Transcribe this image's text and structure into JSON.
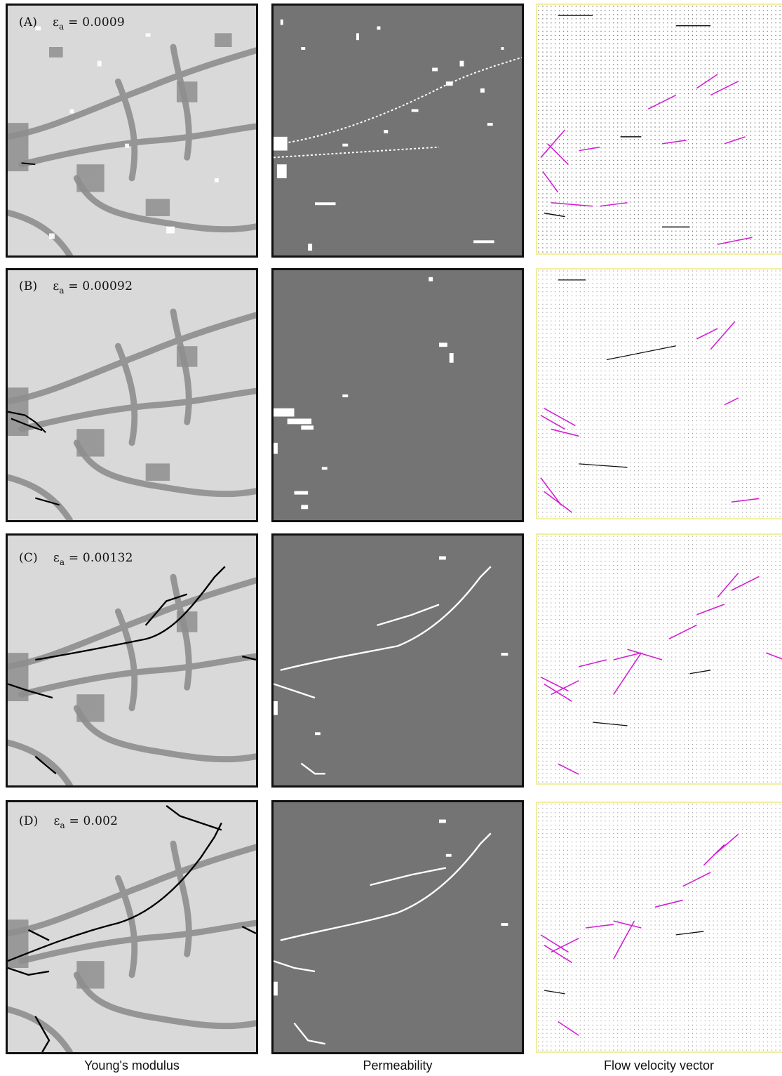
{
  "column_labels": {
    "youngs_modulus": "Young's modulus",
    "permeability": "Permeability",
    "flow_velocity": "Flow velocity vector"
  },
  "rows": [
    {
      "letter": "(A)",
      "symbol": "ε",
      "subscript": "a",
      "equals": "= 0.0009"
    },
    {
      "letter": "(B)",
      "symbol": "ε",
      "subscript": "a",
      "equals": "= 0.00092"
    },
    {
      "letter": "(C)",
      "symbol": "ε",
      "subscript": "a",
      "equals": "= 0.00132"
    },
    {
      "letter": "(D)",
      "symbol": "ε",
      "subscript": "a",
      "equals": "= 0.002"
    }
  ],
  "colors": {
    "matrix_light": "#d9d9d9",
    "matrix_dark": "#8e8e8e",
    "fracture": "#000000",
    "permeability_bg": "#747474",
    "permeability_high": "#ffffff",
    "vector": "#d21fd2",
    "flow_border": "#f2eea0"
  }
}
